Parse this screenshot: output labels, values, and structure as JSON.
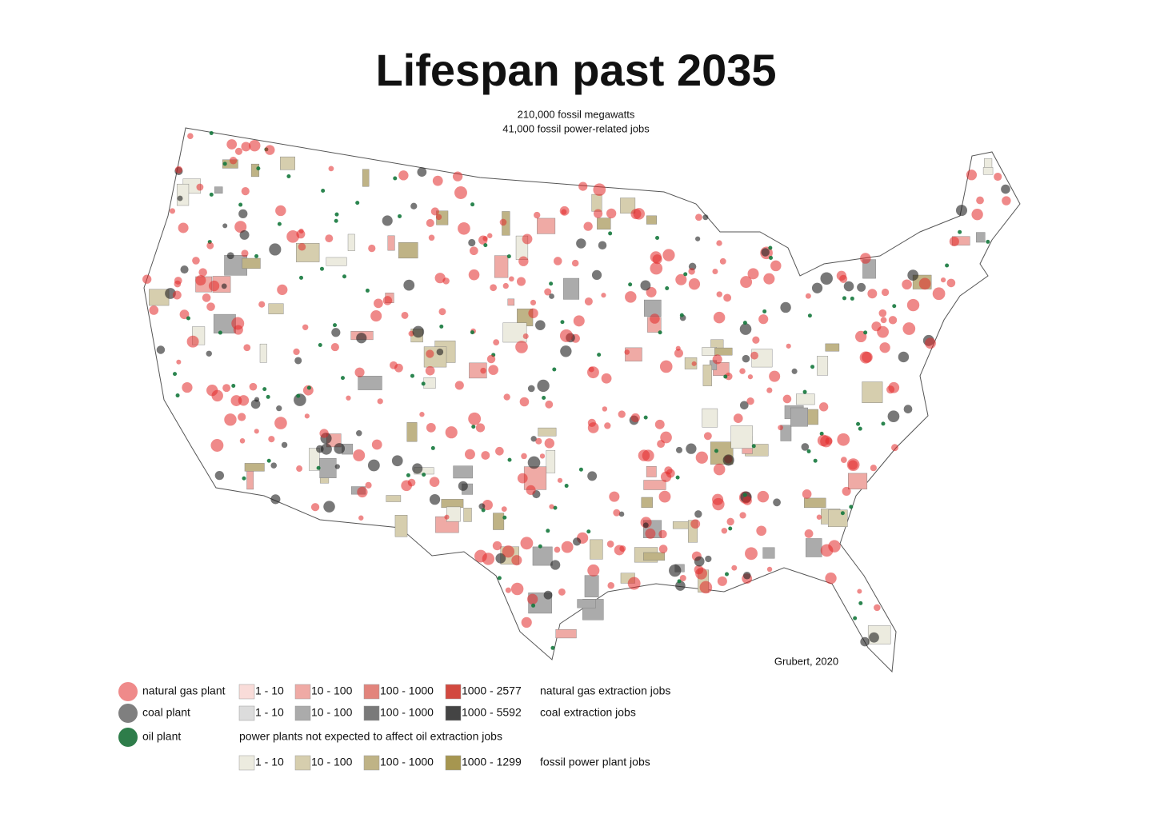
{
  "header": {
    "title": "Lifespan past 2035",
    "subtitle": [
      "210,000 fossil megawatts",
      "41,000 fossil power-related jobs"
    ]
  },
  "credit": "Grubert, 2020",
  "legend": {
    "plants": [
      {
        "label": "natural gas plant",
        "color": "#ef8a8a"
      },
      {
        "label": "coal plant",
        "color": "#7f7f7f"
      },
      {
        "label": "oil plant",
        "color": "#2e7d4a"
      }
    ],
    "note": "power plants not expected to affect oil extraction jobs",
    "scales": [
      {
        "label": "natural gas extraction jobs",
        "bins": [
          {
            "label": "1 - 10",
            "color": "#f9dcd9"
          },
          {
            "label": "10 - 100",
            "color": "#efaaa5"
          },
          {
            "label": "100 - 1000",
            "color": "#e2847c"
          },
          {
            "label": "1000 - 2577",
            "color": "#d2493f"
          }
        ]
      },
      {
        "label": "coal extraction jobs",
        "bins": [
          {
            "label": "1 - 10",
            "color": "#dcdcdc"
          },
          {
            "label": "10 - 100",
            "color": "#ababab"
          },
          {
            "label": "100 - 1000",
            "color": "#7a7a7a"
          },
          {
            "label": "1000 - 5592",
            "color": "#444444"
          }
        ]
      },
      {
        "label": "fossil power plant jobs",
        "bins": [
          {
            "label": "1 - 10",
            "color": "#ecebdf"
          },
          {
            "label": "10 - 100",
            "color": "#d6ceae"
          },
          {
            "label": "100 - 1000",
            "color": "#bfb386"
          },
          {
            "label": "1000 - 1299",
            "color": "#a69650"
          }
        ]
      }
    ]
  }
}
